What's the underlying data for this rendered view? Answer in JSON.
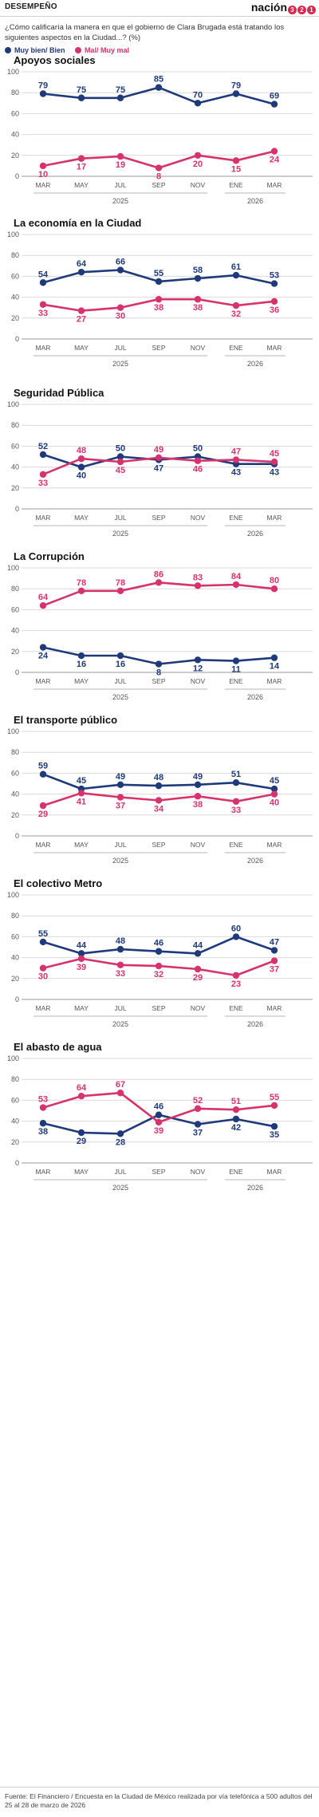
{
  "header": {
    "section": "DESEMPEÑO",
    "brand": "nación",
    "brand_digits": [
      "3",
      "2",
      "1"
    ]
  },
  "question": "¿Cómo calificaría la manera en que el gobierno de Clara Brugada está tratando los siguientes aspectos en la Ciudad...? (%)",
  "legend": {
    "positive": "Muy bien/ Bien",
    "negative": "Mal/ Muy mal"
  },
  "colors": {
    "positive": "#1f3a7a",
    "negative": "#d6336c",
    "grid": "#d9d9d9",
    "axis": "#555555"
  },
  "footer": "Fuente: El Financiero / Encuesta en la Ciudad de México realizada por vía telefónica a 500 adultos del 25 al 28 de marzo de 2026",
  "chart_data": [
    {
      "type": "line",
      "title": "Apoyos sociales",
      "categories": [
        "MAR",
        "MAY",
        "JUL",
        "SEP",
        "NOV",
        "ENE",
        "MAR"
      ],
      "years": [
        "2025",
        "2026"
      ],
      "ylim": [
        0,
        100
      ],
      "yticks": [
        0,
        20,
        40,
        60,
        80,
        100
      ],
      "series": [
        {
          "name": "Muy bien/ Bien",
          "values": [
            79,
            75,
            75,
            85,
            70,
            79,
            69
          ]
        },
        {
          "name": "Mal/ Muy mal",
          "values": [
            10,
            17,
            19,
            8,
            20,
            15,
            24
          ]
        }
      ]
    },
    {
      "type": "line",
      "title": "La economía en la Ciudad",
      "categories": [
        "MAR",
        "MAY",
        "JUL",
        "SEP",
        "NOV",
        "ENE",
        "MAR"
      ],
      "years": [
        "2025",
        "2026"
      ],
      "ylim": [
        0,
        100
      ],
      "yticks": [
        0,
        20,
        40,
        60,
        80,
        100
      ],
      "series": [
        {
          "name": "Muy bien/ Bien",
          "values": [
            54,
            64,
            66,
            55,
            58,
            61,
            53
          ]
        },
        {
          "name": "Mal/ Muy mal",
          "values": [
            33,
            27,
            30,
            38,
            38,
            32,
            36
          ]
        }
      ]
    },
    {
      "type": "line",
      "title": "Seguridad Pública",
      "categories": [
        "MAR",
        "MAY",
        "JUL",
        "SEP",
        "NOV",
        "ENE",
        "MAR"
      ],
      "years": [
        "2025",
        "2026"
      ],
      "ylim": [
        0,
        100
      ],
      "yticks": [
        0,
        20,
        40,
        60,
        80,
        100
      ],
      "series": [
        {
          "name": "Muy bien/ Bien",
          "values": [
            52,
            40,
            50,
            47,
            50,
            43,
            43
          ]
        },
        {
          "name": "Mal/ Muy mal",
          "values": [
            33,
            48,
            45,
            49,
            46,
            47,
            45
          ]
        }
      ]
    },
    {
      "type": "line",
      "title": "La Corrupción",
      "categories": [
        "MAR",
        "MAY",
        "JUL",
        "SEP",
        "NOV",
        "ENE",
        "MAR"
      ],
      "years": [
        "2025",
        "2026"
      ],
      "ylim": [
        0,
        100
      ],
      "yticks": [
        0,
        20,
        40,
        60,
        80,
        100
      ],
      "series": [
        {
          "name": "Muy bien/ Bien",
          "values": [
            24,
            16,
            16,
            8,
            12,
            11,
            14
          ]
        },
        {
          "name": "Mal/ Muy mal",
          "values": [
            64,
            78,
            78,
            86,
            83,
            84,
            80
          ]
        }
      ]
    },
    {
      "type": "line",
      "title": "El transporte público",
      "categories": [
        "MAR",
        "MAY",
        "JUL",
        "SEP",
        "NOV",
        "ENE",
        "MAR"
      ],
      "years": [
        "2025",
        "2026"
      ],
      "ylim": [
        0,
        100
      ],
      "yticks": [
        0,
        20,
        40,
        60,
        80,
        100
      ],
      "series": [
        {
          "name": "Muy bien/ Bien",
          "values": [
            59,
            45,
            49,
            48,
            49,
            51,
            45
          ]
        },
        {
          "name": "Mal/ Muy mal",
          "values": [
            29,
            41,
            37,
            34,
            38,
            33,
            40
          ]
        }
      ]
    },
    {
      "type": "line",
      "title": "El colectivo Metro",
      "categories": [
        "MAR",
        "MAY",
        "JUL",
        "SEP",
        "NOV",
        "ENE",
        "MAR"
      ],
      "years": [
        "2025",
        "2026"
      ],
      "ylim": [
        0,
        100
      ],
      "yticks": [
        0,
        20,
        40,
        60,
        80,
        100
      ],
      "series": [
        {
          "name": "Muy bien/ Bien",
          "values": [
            55,
            44,
            48,
            46,
            44,
            60,
            47
          ]
        },
        {
          "name": "Mal/ Muy mal",
          "values": [
            30,
            39,
            33,
            32,
            29,
            23,
            37
          ]
        }
      ]
    },
    {
      "type": "line",
      "title": "El abasto de agua",
      "categories": [
        "MAR",
        "MAY",
        "JUL",
        "SEP",
        "NOV",
        "ENE",
        "MAR"
      ],
      "years": [
        "2025",
        "2026"
      ],
      "ylim": [
        0,
        100
      ],
      "yticks": [
        0,
        20,
        40,
        60,
        80,
        100
      ],
      "series": [
        {
          "name": "Muy bien/ Bien",
          "values": [
            38,
            29,
            28,
            46,
            37,
            42,
            35
          ]
        },
        {
          "name": "Mal/ Muy mal",
          "values": [
            53,
            64,
            67,
            39,
            52,
            51,
            55
          ]
        }
      ]
    }
  ]
}
